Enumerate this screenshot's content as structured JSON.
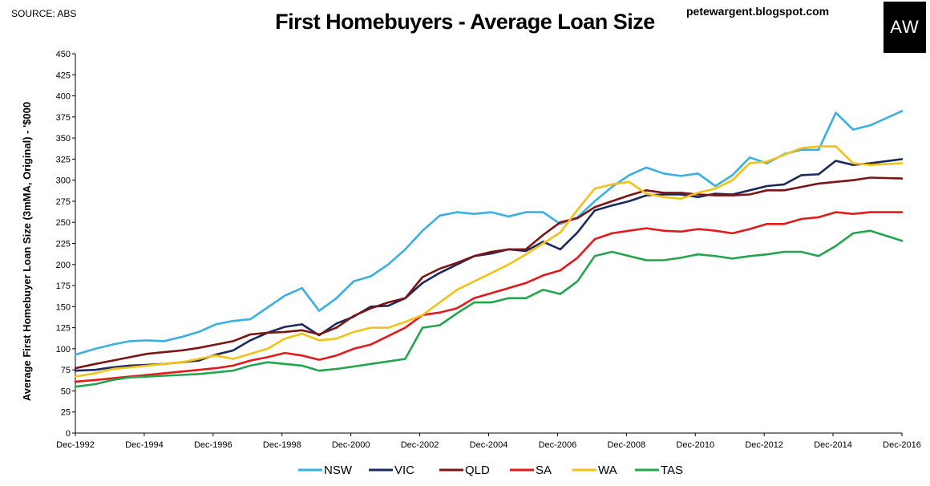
{
  "source_label": "SOURCE: ABS",
  "blog_label": "petewargent.blogspot.com",
  "logo_text": "AW",
  "chart_data": {
    "type": "line",
    "title": "First Homebuyers - Average Loan Size",
    "ylabel": "Average First Homebuyer Loan Size (3mMA, Original) - '$000",
    "xlabel": "",
    "x_ticks": [
      "Dec-1992",
      "Dec-1994",
      "Dec-1996",
      "Dec-1998",
      "Dec-2000",
      "Dec-2002",
      "Dec-2004",
      "Dec-2006",
      "Dec-2008",
      "Dec-2010",
      "Dec-2012",
      "Dec-2014",
      "Dec-2016"
    ],
    "x": [
      1992.92,
      1993.5,
      1994,
      1994.5,
      1995,
      1995.5,
      1996,
      1996.5,
      1997,
      1997.5,
      1998,
      1998.5,
      1999,
      1999.5,
      2000,
      2000.5,
      2001,
      2001.5,
      2002,
      2002.5,
      2003,
      2003.5,
      2004,
      2004.5,
      2005,
      2005.5,
      2006,
      2006.5,
      2007,
      2007.5,
      2008,
      2008.5,
      2009,
      2009.5,
      2010,
      2010.5,
      2011,
      2011.5,
      2012,
      2012.5,
      2013,
      2013.5,
      2014,
      2014.5,
      2015,
      2015.5,
      2016,
      2016.92
    ],
    "ylim": [
      0,
      450
    ],
    "y_ticks": [
      0,
      25,
      50,
      75,
      100,
      125,
      150,
      175,
      200,
      225,
      250,
      275,
      300,
      325,
      350,
      375,
      400,
      425,
      450
    ],
    "grid": false,
    "legend": "bottom",
    "series": [
      {
        "name": "NSW",
        "color": "#39b0e2",
        "values": [
          93,
          100,
          105,
          109,
          110,
          109,
          114,
          120,
          129,
          133,
          135,
          149,
          163,
          172,
          145,
          160,
          180,
          186,
          200,
          218,
          240,
          258,
          262,
          260,
          262,
          257,
          262,
          262,
          248,
          256,
          275,
          292,
          306,
          315,
          308,
          305,
          308,
          293,
          306,
          327,
          320,
          331,
          336,
          336,
          380,
          360,
          365,
          382
        ]
      },
      {
        "name": "VIC",
        "color": "#1b2a5c",
        "values": [
          74,
          75,
          78,
          80,
          81,
          82,
          84,
          86,
          93,
          98,
          110,
          119,
          126,
          129,
          116,
          130,
          138,
          150,
          151,
          160,
          178,
          190,
          200,
          210,
          213,
          218,
          216,
          227,
          218,
          238,
          264,
          270,
          275,
          282,
          283,
          283,
          280,
          284,
          283,
          288,
          293,
          295,
          306,
          307,
          323,
          318,
          320,
          325
        ]
      },
      {
        "name": "QLD",
        "color": "#7d1414",
        "values": [
          77,
          82,
          86,
          90,
          94,
          96,
          98,
          101,
          105,
          109,
          117,
          119,
          120,
          122,
          117,
          125,
          139,
          148,
          155,
          160,
          185,
          195,
          202,
          210,
          215,
          218,
          218,
          235,
          250,
          255,
          268,
          275,
          282,
          288,
          285,
          285,
          283,
          282,
          282,
          283,
          288,
          288,
          292,
          296,
          298,
          300,
          303,
          302
        ]
      },
      {
        "name": "SA",
        "color": "#e51919",
        "values": [
          61,
          63,
          65,
          67,
          69,
          71,
          73,
          75,
          77,
          80,
          86,
          90,
          95,
          92,
          87,
          92,
          100,
          105,
          115,
          125,
          140,
          143,
          148,
          160,
          166,
          172,
          178,
          187,
          193,
          208,
          230,
          237,
          240,
          243,
          240,
          239,
          242,
          240,
          237,
          242,
          248,
          248,
          254,
          256,
          262,
          260,
          262,
          262
        ]
      },
      {
        "name": "WA",
        "color": "#f5c117",
        "values": [
          67,
          71,
          76,
          78,
          80,
          82,
          84,
          88,
          92,
          88,
          94,
          100,
          112,
          118,
          110,
          112,
          120,
          125,
          125,
          132,
          140,
          155,
          170,
          180,
          190,
          200,
          212,
          225,
          238,
          265,
          290,
          295,
          298,
          284,
          280,
          278,
          285,
          290,
          300,
          320,
          322,
          330,
          338,
          340,
          340,
          320,
          318,
          320
        ]
      },
      {
        "name": "TAS",
        "color": "#22a54c",
        "values": [
          55,
          58,
          63,
          66,
          67,
          68,
          69,
          70,
          72,
          74,
          80,
          84,
          82,
          80,
          74,
          76,
          79,
          82,
          85,
          88,
          125,
          128,
          142,
          155,
          155,
          160,
          160,
          170,
          165,
          180,
          210,
          215,
          210,
          205,
          205,
          208,
          212,
          210,
          207,
          210,
          212,
          215,
          215,
          210,
          222,
          237,
          240,
          228
        ]
      }
    ]
  }
}
